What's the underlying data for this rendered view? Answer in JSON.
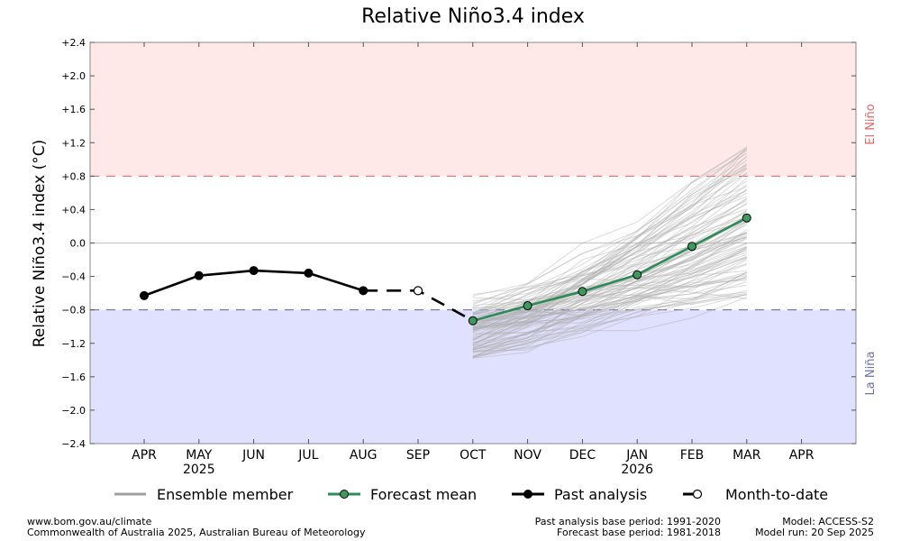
{
  "colors": {
    "el_nino_band": "#fee8e8",
    "la_nina_band": "#e0e0ff",
    "el_nino_threshold": "#e06060",
    "la_nina_threshold": "#6060a8",
    "el_nino_text": "#e06666",
    "la_nina_text": "#7070b0",
    "forecast_mean": "#2e8b57",
    "forecast_marker": "#3d9a5c",
    "ensemble": "#b0b0b0",
    "past": "#000000"
  },
  "chart_data": {
    "type": "line",
    "title": "Relative Niño3.4 index",
    "ylabel": "Relative Niño3.4 index (°C)",
    "ylim": [
      -2.4,
      2.4
    ],
    "yticks": [
      "+2.4",
      "+2.0",
      "+1.6",
      "+1.2",
      "+0.8",
      "+0.4",
      "0.0",
      "−0.4",
      "−0.8",
      "−1.2",
      "−1.6",
      "−2.0",
      "−2.4"
    ],
    "ytick_values": [
      2.4,
      2.0,
      1.6,
      1.2,
      0.8,
      0.4,
      0.0,
      -0.4,
      -0.8,
      -1.2,
      -1.6,
      -2.0,
      -2.4
    ],
    "months": [
      "APR",
      "MAY",
      "JUN",
      "JUL",
      "AUG",
      "SEP",
      "OCT",
      "NOV",
      "DEC",
      "JAN",
      "FEB",
      "MAR",
      "APR"
    ],
    "year_labels": [
      {
        "month_index": 1,
        "text": "2025"
      },
      {
        "month_index": 9,
        "text": "2026"
      }
    ],
    "thresholds": {
      "el_nino": 0.8,
      "la_nina": -0.8
    },
    "region_labels": {
      "el_nino": "El Niño",
      "la_nina": "La Niña"
    },
    "series": [
      {
        "name": "Past analysis",
        "month_index": [
          0,
          1,
          2,
          3,
          4
        ],
        "values": [
          -0.63,
          -0.39,
          -0.33,
          -0.36,
          -0.57
        ]
      },
      {
        "name": "Month-to-date",
        "month_index": [
          4,
          5,
          6
        ],
        "values": [
          -0.57,
          -0.57,
          -0.93
        ]
      },
      {
        "name": "Forecast mean",
        "month_index": [
          6,
          7,
          8,
          9,
          10,
          11
        ],
        "values": [
          -0.93,
          -0.75,
          -0.58,
          -0.38,
          -0.04,
          0.3
        ]
      }
    ],
    "ensemble": {
      "name": "Ensemble member",
      "month_range": [
        6,
        11
      ],
      "start_spread": [
        -1.4,
        -0.6
      ],
      "end_spread": [
        -0.65,
        1.15
      ]
    },
    "legend": {
      "position": "bottom",
      "items": [
        "Ensemble member",
        "Forecast mean",
        "Past analysis",
        "Month-to-date"
      ]
    }
  },
  "footer": {
    "left_line1": "www.bom.gov.au/climate",
    "left_line2": "Commonwealth of Australia 2025, Australian Bureau of Meteorology",
    "mid_line1": "Past analysis base period: 1991-2020",
    "mid_line2": "Forecast base period: 1981-2018",
    "right_line1": "Model: ACCESS-S2",
    "right_line2": "Model run: 20 Sep 2025"
  }
}
